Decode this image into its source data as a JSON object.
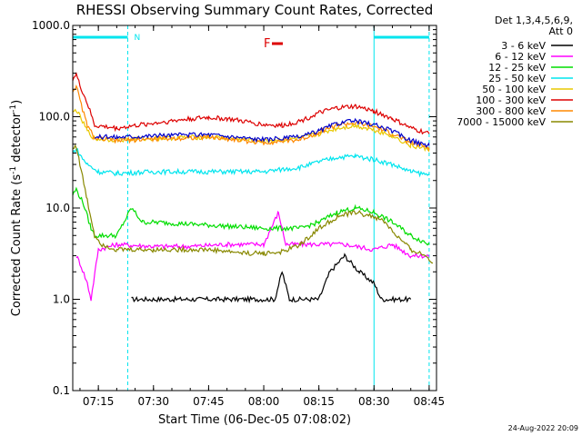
{
  "chart_data": {
    "type": "line",
    "title": "RHESSI Observing Summary Count Rates, Corrected",
    "xlabel": "Start Time (06-Dec-05 07:08:02)",
    "ylabel_main": "Corrected Count Rate (s",
    "ylabel_sup1": "-1",
    "ylabel_mid": " detector",
    "ylabel_sup2": "-1",
    "ylabel_end": ")",
    "yscale": "log",
    "ylim": [
      0.1,
      1000
    ],
    "xlim": [
      "07:08:02",
      "08:47:00"
    ],
    "xtick_labels": [
      "07:15",
      "07:30",
      "07:45",
      "08:00",
      "08:15",
      "08:30",
      "08:45"
    ],
    "ytick_labels": [
      "0.1",
      "1.0",
      "10.0",
      "100.0",
      "1000.0"
    ],
    "grid": false,
    "legend_header": [
      "Det 1,3,4,5,6,9,",
      "Att 0"
    ],
    "legend_position": "right",
    "flag_labels": {
      "night": "N",
      "flare": "F"
    },
    "timestamp": "24-Aug-2022 20:09",
    "night_intervals": [
      [
        "07:08:02",
        "07:23:00"
      ],
      [
        "08:30:00",
        "08:45:00"
      ]
    ],
    "flare_interval": [
      "08:03:00",
      "08:06:00"
    ],
    "series": [
      {
        "name": "3 - 6 keV",
        "color": "#000000",
        "points": [
          [
            "07:24",
            1.0
          ],
          [
            "07:40",
            1.0
          ],
          [
            "07:55",
            1.0
          ],
          [
            "08:03",
            1.0
          ],
          [
            "08:05",
            2.0
          ],
          [
            "08:07",
            1.0
          ],
          [
            "08:15",
            1.0
          ],
          [
            "08:18",
            2.0
          ],
          [
            "08:22",
            3.0
          ],
          [
            "08:26",
            2.0
          ],
          [
            "08:30",
            1.5
          ],
          [
            "08:32",
            1.0
          ],
          [
            "08:40",
            1.0
          ]
        ]
      },
      {
        "name": "6 - 12 keV",
        "color": "#ff00ff",
        "points": [
          [
            "07:09",
            3.0
          ],
          [
            "07:10",
            2.5
          ],
          [
            "07:12",
            1.5
          ],
          [
            "07:13",
            1.0
          ],
          [
            "07:15",
            3.5
          ],
          [
            "07:20",
            4.0
          ],
          [
            "07:30",
            3.8
          ],
          [
            "07:40",
            3.8
          ],
          [
            "07:50",
            4.0
          ],
          [
            "08:00",
            4.0
          ],
          [
            "08:04",
            9.0
          ],
          [
            "08:06",
            4.0
          ],
          [
            "08:15",
            4.0
          ],
          [
            "08:22",
            4.0
          ],
          [
            "08:30",
            3.5
          ],
          [
            "08:35",
            4.0
          ],
          [
            "08:40",
            3.0
          ],
          [
            "08:45",
            3.0
          ]
        ]
      },
      {
        "name": "12 - 25 keV",
        "color": "#00dd00",
        "points": [
          [
            "07:08",
            14
          ],
          [
            "07:09",
            16
          ],
          [
            "07:11",
            11
          ],
          [
            "07:13",
            6
          ],
          [
            "07:14",
            5
          ],
          [
            "07:20",
            5
          ],
          [
            "07:22",
            7
          ],
          [
            "07:24",
            10
          ],
          [
            "07:27",
            7
          ],
          [
            "07:30",
            7
          ],
          [
            "07:45",
            6.5
          ],
          [
            "08:00",
            6
          ],
          [
            "08:10",
            6
          ],
          [
            "08:15",
            7
          ],
          [
            "08:20",
            9
          ],
          [
            "08:25",
            10
          ],
          [
            "08:30",
            9
          ],
          [
            "08:35",
            7
          ],
          [
            "08:40",
            5
          ],
          [
            "08:45",
            4
          ]
        ]
      },
      {
        "name": "25 - 50 keV",
        "color": "#00e5ee",
        "points": [
          [
            "07:08",
            40
          ],
          [
            "07:09",
            45
          ],
          [
            "07:10",
            38
          ],
          [
            "07:12",
            30
          ],
          [
            "07:15",
            25
          ],
          [
            "07:20",
            24
          ],
          [
            "07:30",
            25
          ],
          [
            "07:45",
            25
          ],
          [
            "08:00",
            25
          ],
          [
            "08:10",
            28
          ],
          [
            "08:15",
            32
          ],
          [
            "08:20",
            36
          ],
          [
            "08:25",
            37
          ],
          [
            "08:30",
            34
          ],
          [
            "08:35",
            30
          ],
          [
            "08:40",
            25
          ],
          [
            "08:45",
            23
          ]
        ]
      },
      {
        "name": "50 - 100 keV",
        "color": "#e8c800",
        "points": [
          [
            "07:08",
            110
          ],
          [
            "07:09",
            120
          ],
          [
            "07:10",
            100
          ],
          [
            "07:12",
            70
          ],
          [
            "07:14",
            57
          ],
          [
            "07:20",
            56
          ],
          [
            "07:30",
            58
          ],
          [
            "07:45",
            60
          ],
          [
            "08:00",
            54
          ],
          [
            "08:10",
            58
          ],
          [
            "08:15",
            65
          ],
          [
            "08:20",
            75
          ],
          [
            "08:25",
            80
          ],
          [
            "08:30",
            72
          ],
          [
            "08:35",
            62
          ],
          [
            "08:40",
            48
          ],
          [
            "08:45",
            44
          ]
        ]
      },
      {
        "name": "100 - 300 keV",
        "color": "#dd0000",
        "points": [
          [
            "07:08",
            260
          ],
          [
            "07:09",
            290
          ],
          [
            "07:10",
            220
          ],
          [
            "07:12",
            140
          ],
          [
            "07:14",
            80
          ],
          [
            "07:20",
            75
          ],
          [
            "07:30",
            85
          ],
          [
            "07:40",
            95
          ],
          [
            "07:45",
            98
          ],
          [
            "07:50",
            95
          ],
          [
            "08:00",
            82
          ],
          [
            "08:05",
            80
          ],
          [
            "08:10",
            90
          ],
          [
            "08:15",
            110
          ],
          [
            "08:20",
            125
          ],
          [
            "08:25",
            130
          ],
          [
            "08:30",
            115
          ],
          [
            "08:35",
            95
          ],
          [
            "08:40",
            75
          ],
          [
            "08:45",
            65
          ]
        ]
      },
      {
        "name": "300 - 800 keV",
        "color": "#ff8800",
        "points": [
          [
            "07:08",
            190
          ],
          [
            "07:09",
            220
          ],
          [
            "07:10",
            150
          ],
          [
            "07:12",
            80
          ],
          [
            "07:14",
            58
          ],
          [
            "07:20",
            55
          ],
          [
            "07:30",
            57
          ],
          [
            "07:45",
            60
          ],
          [
            "08:00",
            52
          ],
          [
            "08:10",
            56
          ],
          [
            "08:15",
            68
          ],
          [
            "08:20",
            82
          ],
          [
            "08:25",
            85
          ],
          [
            "08:30",
            78
          ],
          [
            "08:35",
            65
          ],
          [
            "08:40",
            52
          ],
          [
            "08:45",
            46
          ]
        ]
      },
      {
        "name": "7000 - 15000 keV",
        "color": "#888800",
        "points": [
          [
            "07:08",
            45
          ],
          [
            "07:09",
            48
          ],
          [
            "07:10",
            30
          ],
          [
            "07:12",
            12
          ],
          [
            "07:14",
            5
          ],
          [
            "07:16",
            4
          ],
          [
            "07:20",
            3.5
          ],
          [
            "07:30",
            3.5
          ],
          [
            "07:45",
            3.5
          ],
          [
            "07:55",
            3.2
          ],
          [
            "08:00",
            3.2
          ],
          [
            "08:05",
            3.3
          ],
          [
            "08:10",
            4
          ],
          [
            "08:15",
            6
          ],
          [
            "08:20",
            8
          ],
          [
            "08:25",
            9
          ],
          [
            "08:30",
            8
          ],
          [
            "08:33",
            7
          ],
          [
            "08:36",
            5
          ],
          [
            "08:40",
            3.5
          ],
          [
            "08:44",
            3
          ],
          [
            "08:46",
            2.5
          ]
        ]
      }
    ],
    "blue_series": {
      "color": "#0000cc",
      "points": [
        [
          "07:14",
          60
        ],
        [
          "07:20",
          60
        ],
        [
          "07:30",
          62
        ],
        [
          "07:45",
          64
        ],
        [
          "08:00",
          56
        ],
        [
          "08:10",
          60
        ],
        [
          "08:15",
          70
        ],
        [
          "08:20",
          85
        ],
        [
          "08:25",
          90
        ],
        [
          "08:30",
          82
        ],
        [
          "08:35",
          70
        ],
        [
          "08:40",
          55
        ],
        [
          "08:45",
          48
        ]
      ]
    }
  }
}
